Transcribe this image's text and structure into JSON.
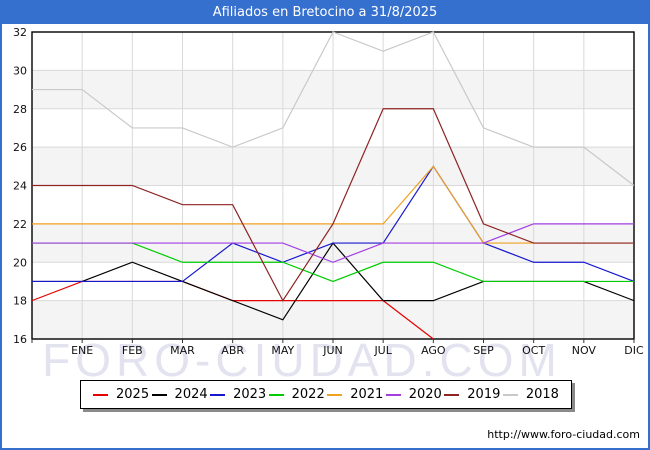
{
  "title": "Afiliados en Bretocino a 31/8/2025",
  "watermark": "FORO-CIUDAD.COM",
  "footer": {
    "url_label": "http://www.foro-ciudad.com"
  },
  "colors": {
    "header_bg": "#3570cf",
    "frame_border": "#3570cf",
    "band_fill": "#f4f4f4",
    "gridline": "#d9d9d9",
    "plot_border": "#000000",
    "axis_text": "#111111",
    "watermark_fill": "#e3e3f0",
    "legend_shadow": "#8a8a8a"
  },
  "chart_data": {
    "type": "line",
    "title": "Afiliados en Bretocino a 31/8/2025",
    "categories": [
      "ENE",
      "FEB",
      "MAR",
      "ABR",
      "MAY",
      "JUN",
      "JUL",
      "AGO",
      "SEP",
      "OCT",
      "NOV",
      "DIC"
    ],
    "y_ticks": [
      16,
      18,
      20,
      22,
      24,
      26,
      28,
      30,
      32
    ],
    "ylim": [
      16,
      32
    ],
    "grid": true,
    "legend_position": "bottom",
    "note": "First value of each series is plotted on the left axis before ENE; 2025 ends at AGO (data to 31/8/2025).",
    "series": [
      {
        "name": "2025",
        "color": "#e60000",
        "values": [
          18,
          19,
          19,
          19,
          18,
          18,
          18,
          18,
          16
        ]
      },
      {
        "name": "2024",
        "color": "#000000",
        "values": [
          19,
          19,
          20,
          19,
          18,
          17,
          21,
          18,
          18,
          19,
          19,
          19,
          18
        ]
      },
      {
        "name": "2023",
        "color": "#1717cf",
        "values": [
          19,
          19,
          19,
          19,
          21,
          20,
          21,
          21,
          25,
          21,
          20,
          20,
          19
        ]
      },
      {
        "name": "2022",
        "color": "#00cc00",
        "values": [
          21,
          21,
          21,
          20,
          20,
          20,
          19,
          20,
          20,
          19,
          19,
          19,
          19
        ]
      },
      {
        "name": "2021",
        "color": "#efa223",
        "values": [
          22,
          22,
          22,
          22,
          22,
          22,
          22,
          22,
          25,
          21,
          21,
          21,
          21
        ]
      },
      {
        "name": "2020",
        "color": "#a23ee3",
        "values": [
          21,
          21,
          21,
          21,
          21,
          21,
          20,
          21,
          21,
          21,
          22,
          22,
          22
        ]
      },
      {
        "name": "2019",
        "color": "#8e2323",
        "values": [
          24,
          24,
          24,
          23,
          23,
          18,
          22,
          28,
          28,
          22,
          21,
          21,
          21
        ]
      },
      {
        "name": "2018",
        "color": "#c9c9c9",
        "values": [
          29,
          29,
          27,
          27,
          26,
          27,
          32,
          31,
          32,
          27,
          26,
          26,
          24
        ]
      }
    ]
  }
}
